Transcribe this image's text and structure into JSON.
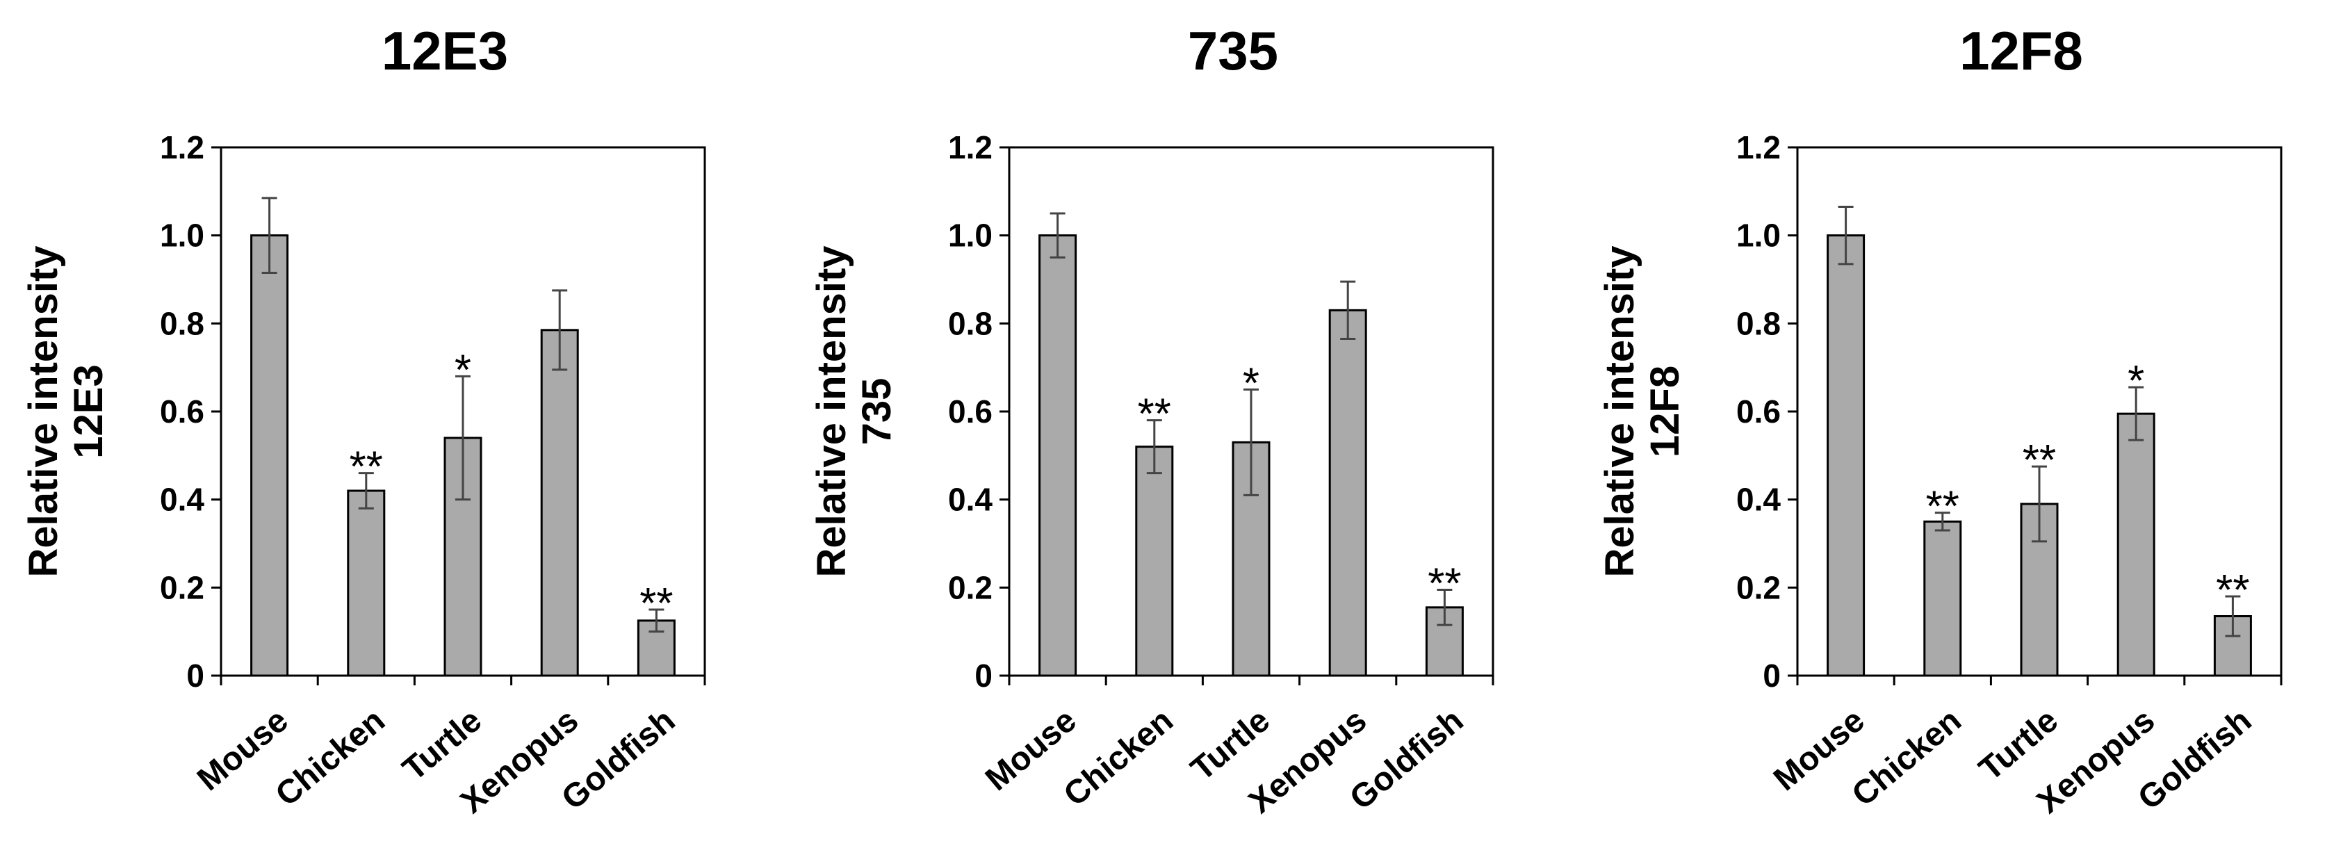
{
  "colors": {
    "bar": "#aaaaaa",
    "bar_edge": "#000000",
    "axis": "#000000",
    "error_bar": "#444444"
  },
  "chart_data": [
    {
      "type": "bar",
      "title": "12E3",
      "ylabel": [
        "Relative intensity",
        "12E3"
      ],
      "categories": [
        "Mouse",
        "Chicken",
        "Turtle",
        "Xenopus",
        "Goldfish"
      ],
      "values": [
        1.0,
        0.42,
        0.54,
        0.785,
        0.125
      ],
      "errors": [
        0.085,
        0.04,
        0.14,
        0.09,
        0.025
      ],
      "significance": [
        "",
        "**",
        "*",
        "",
        "**"
      ],
      "ylim": [
        0,
        1.2
      ],
      "yticks": [
        "0",
        "0.2",
        "0.4",
        "0.6",
        "0.8",
        "1.0",
        "1.2"
      ],
      "grid": false
    },
    {
      "type": "bar",
      "title": "735",
      "ylabel": [
        "Relative intensity",
        "735"
      ],
      "categories": [
        "Mouse",
        "Chicken",
        "Turtle",
        "Xenopus",
        "Goldfish"
      ],
      "values": [
        1.0,
        0.52,
        0.53,
        0.83,
        0.155
      ],
      "errors": [
        0.05,
        0.06,
        0.12,
        0.065,
        0.04
      ],
      "significance": [
        "",
        "**",
        "*",
        "",
        "**"
      ],
      "ylim": [
        0,
        1.2
      ],
      "yticks": [
        "0",
        "0.2",
        "0.4",
        "0.6",
        "0.8",
        "1.0",
        "1.2"
      ],
      "grid": false
    },
    {
      "type": "bar",
      "title": "12F8",
      "ylabel": [
        "Relative intensity",
        "12F8"
      ],
      "categories": [
        "Mouse",
        "Chicken",
        "Turtle",
        "Xenopus",
        "Goldfish"
      ],
      "values": [
        1.0,
        0.35,
        0.39,
        0.595,
        0.135
      ],
      "errors": [
        0.065,
        0.02,
        0.085,
        0.06,
        0.045
      ],
      "significance": [
        "",
        "**",
        "**",
        "*",
        "**"
      ],
      "ylim": [
        0,
        1.2
      ],
      "yticks": [
        "0",
        "0.2",
        "0.4",
        "0.6",
        "0.8",
        "1.0",
        "1.2"
      ],
      "grid": false
    }
  ]
}
